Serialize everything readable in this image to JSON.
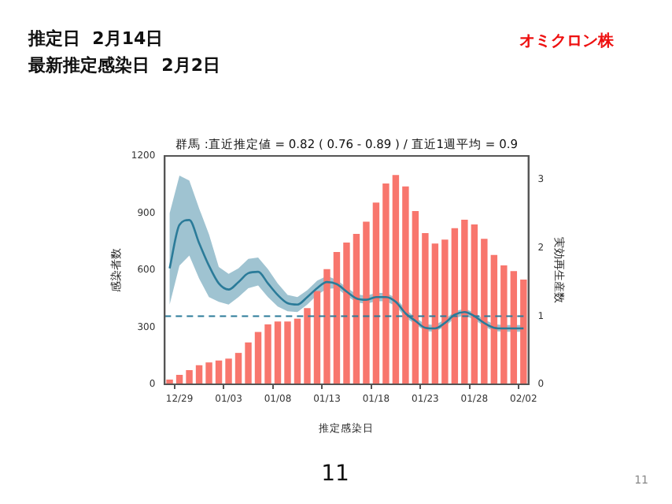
{
  "chart_data": {
    "type": "bar",
    "title": "群馬 :直近推定値 = 0.82 ( 0.76 - 0.89 ) / 直近1週平均 = 0.9",
    "xlabel": "推定感染日",
    "ylabel": "感染者数",
    "y2label": "実効再生産数",
    "annotations": [
      "推定日  2月14日",
      "最新推定感染日  2月2日",
      "オミクロン株",
      "11",
      "11"
    ],
    "categories": [
      null,
      "12/29",
      null,
      null,
      null,
      null,
      "01/03",
      null,
      null,
      null,
      null,
      "01/08",
      null,
      null,
      null,
      null,
      "01/13",
      null,
      null,
      null,
      null,
      "01/18",
      null,
      null,
      null,
      null,
      "01/23",
      null,
      null,
      null,
      null,
      "01/28",
      null,
      null,
      null,
      null,
      "02/02"
    ],
    "ylim": [
      0,
      1200
    ],
    "yticks": [
      0,
      300,
      600,
      900,
      1200
    ],
    "y2lim": [
      0,
      3.35
    ],
    "y2ticks": [
      0,
      1,
      2,
      3
    ],
    "series": [
      {
        "color": "#f8766d",
        "values": [
          25,
          50,
          75,
          100,
          115,
          125,
          135,
          165,
          220,
          275,
          315,
          330,
          330,
          345,
          400,
          490,
          605,
          695,
          745,
          790,
          855,
          955,
          1055,
          1100,
          1040,
          910,
          795,
          740,
          760,
          820,
          865,
          840,
          765,
          680,
          625,
          595,
          550
        ]
      },
      {
        "type": "line",
        "axis": "y2",
        "color": "#2b7b99",
        "values": [
          1.7,
          2.34,
          2.41,
          2.07,
          1.74,
          1.48,
          1.39,
          1.5,
          1.63,
          1.65,
          1.48,
          1.31,
          1.19,
          1.17,
          1.28,
          1.41,
          1.5,
          1.47,
          1.36,
          1.26,
          1.24,
          1.28,
          1.28,
          1.21,
          1.04,
          0.93,
          0.83,
          0.82,
          0.9,
          1.02,
          1.06,
          1.0,
          0.9,
          0.83,
          0.82,
          0.82,
          0.82
        ],
        "lower": [
          1.17,
          1.74,
          1.89,
          1.55,
          1.28,
          1.21,
          1.17,
          1.28,
          1.41,
          1.45,
          1.28,
          1.14,
          1.07,
          1.06,
          1.17,
          1.31,
          1.4,
          1.41,
          1.3,
          1.2,
          1.18,
          1.22,
          1.22,
          1.15,
          0.98,
          0.88,
          0.78,
          0.77,
          0.85,
          0.97,
          1.01,
          0.95,
          0.85,
          0.78,
          0.77,
          0.77,
          0.77
        ],
        "upper": [
          2.51,
          3.06,
          2.99,
          2.58,
          2.2,
          1.72,
          1.62,
          1.7,
          1.84,
          1.86,
          1.69,
          1.48,
          1.31,
          1.28,
          1.38,
          1.52,
          1.59,
          1.53,
          1.42,
          1.32,
          1.3,
          1.34,
          1.34,
          1.27,
          1.1,
          0.98,
          0.88,
          0.87,
          0.95,
          1.07,
          1.11,
          1.05,
          0.95,
          0.88,
          0.87,
          0.87,
          0.87
        ]
      }
    ],
    "ref_lines": [
      {
        "axis": "y2",
        "value": 1,
        "color": "#2b7b99",
        "line_style": "dashed"
      }
    ],
    "legend": false
  }
}
